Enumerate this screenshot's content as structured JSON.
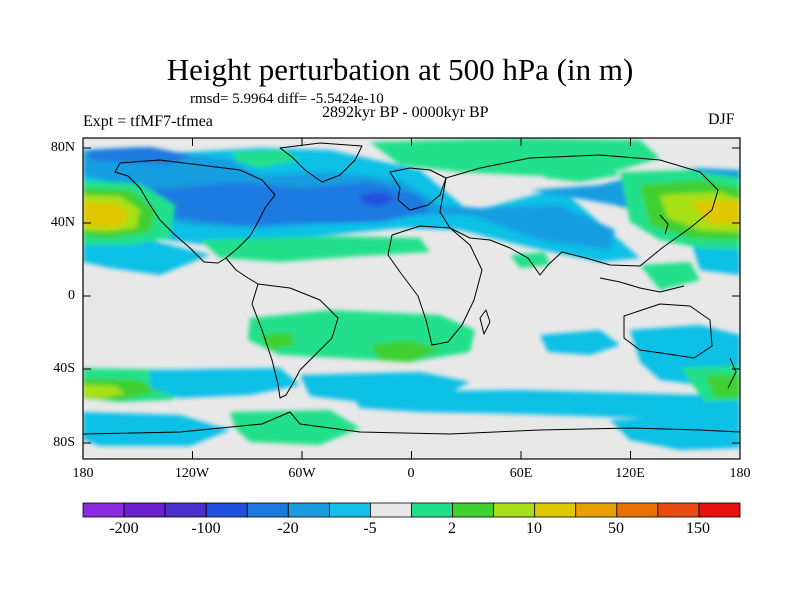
{
  "title": "Height perturbation at 500 hPa (in m)",
  "stats_text": "rmsd= 5.9964 diff= -5.5424e-10",
  "period": "2892kyr BP - 0000kyr BP",
  "experiment": "Expt = tfMF7-tfmea",
  "season": "DJF",
  "lat_labels": [
    "80N",
    "40N",
    "0",
    "40S",
    "80S"
  ],
  "lon_labels": [
    "180",
    "120W",
    "60W",
    "0",
    "60E",
    "120E",
    "180"
  ],
  "colorbar": {
    "labels": [
      "-200",
      "-100",
      "-20",
      "-5",
      "2",
      "10",
      "50",
      "150"
    ],
    "colors": [
      "#8a2be2",
      "#6a1fd0",
      "#4b2fd0",
      "#2050e0",
      "#1a7ae0",
      "#189ee0",
      "#10c0e6",
      "#e8e8e8",
      "#20e08a",
      "#40d030",
      "#a8e018",
      "#e0c800",
      "#e8a000",
      "#e87000",
      "#e84a10",
      "#e81010"
    ]
  },
  "field_colors": {
    "missing": "#e8e8e8",
    "light_blue": "#10c0e6",
    "mid_blue": "#189ee0",
    "blue": "#1a7ae0",
    "dark_blue": "#2050e0",
    "light_green": "#20e08a",
    "green": "#40d030",
    "yellow_green": "#a8e018",
    "yellow": "#e0c800",
    "coast": "#000000"
  }
}
